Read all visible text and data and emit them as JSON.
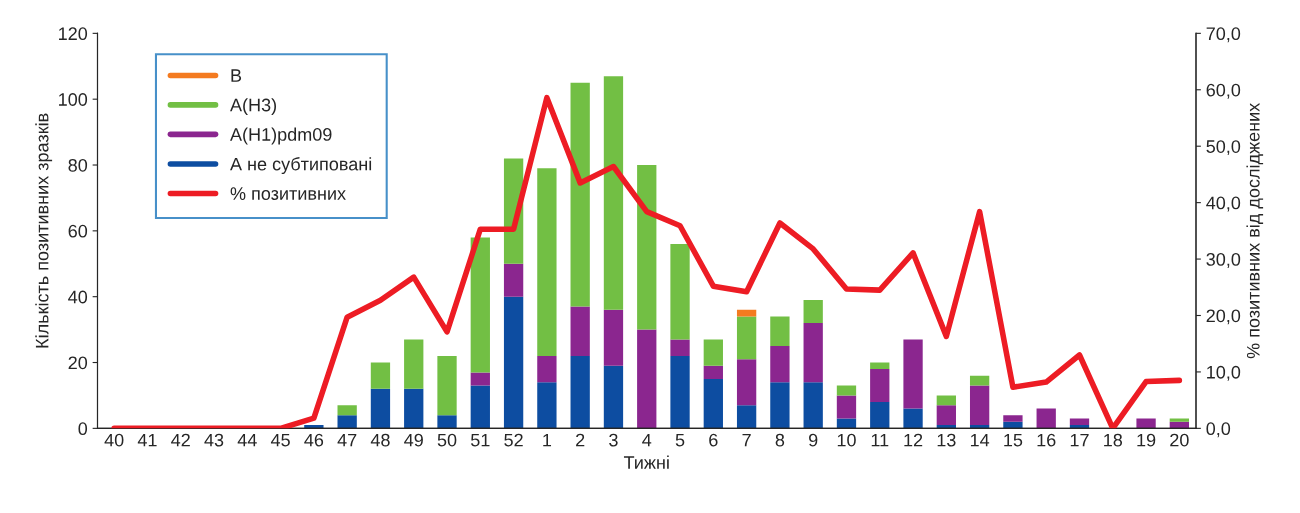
{
  "chart_data": {
    "type": "bar",
    "stacked": true,
    "xlabel": "Тижні",
    "ylabel": "Кількість позитивних зразків",
    "y2label": "% позитивних від досліджених",
    "categories": [
      "40",
      "41",
      "42",
      "43",
      "44",
      "45",
      "46",
      "47",
      "48",
      "49",
      "50",
      "51",
      "52",
      "1",
      "2",
      "3",
      "4",
      "5",
      "6",
      "7",
      "8",
      "9",
      "10",
      "11",
      "12",
      "13",
      "14",
      "15",
      "16",
      "17",
      "18",
      "19",
      "20"
    ],
    "series": [
      {
        "name": "А не субтиповані",
        "color": "#0d4da1",
        "values": [
          0,
          0,
          0,
          0,
          0,
          0,
          1,
          4,
          12,
          12,
          4,
          13,
          40,
          14,
          22,
          19,
          0,
          22,
          15,
          7,
          14,
          14,
          3,
          8,
          6,
          1,
          1,
          2,
          0,
          1,
          0,
          0,
          0
        ]
      },
      {
        "name": "А(H1)pdm09",
        "color": "#8b268f",
        "values": [
          0,
          0,
          0,
          0,
          0,
          0,
          0,
          0,
          0,
          0,
          0,
          4,
          10,
          8,
          15,
          17,
          30,
          5,
          4,
          14,
          11,
          18,
          7,
          10,
          21,
          6,
          12,
          2,
          6,
          2,
          0,
          3,
          2
        ]
      },
      {
        "name": "А(H3)",
        "color": "#72bf44",
        "values": [
          0,
          0,
          0,
          0,
          0,
          0,
          0,
          3,
          8,
          15,
          18,
          41,
          32,
          57,
          68,
          71,
          50,
          29,
          8,
          13,
          9,
          7,
          3,
          2,
          0,
          3,
          3,
          0,
          0,
          0,
          0,
          0,
          1
        ]
      },
      {
        "name": "В",
        "color": "#f47b20",
        "values": [
          0,
          0,
          0,
          0,
          0,
          0,
          0,
          0,
          0,
          0,
          0,
          0,
          0,
          0,
          0,
          0,
          0,
          0,
          0,
          2,
          0,
          0,
          0,
          0,
          0,
          0,
          0,
          0,
          0,
          0,
          0,
          0,
          0
        ]
      },
      {
        "name": "% позитивних",
        "type": "line",
        "axis": "y2",
        "color": "#ed1c24",
        "values": [
          0,
          0,
          0,
          0,
          0,
          0,
          1.8,
          19.7,
          22.7,
          26.8,
          17.1,
          35.3,
          35.3,
          58.6,
          43.5,
          46.4,
          38.4,
          35.9,
          25.2,
          24.2,
          36.4,
          31.8,
          24.7,
          24.5,
          31.1,
          16.3,
          38.4,
          7.3,
          8.2,
          13.0,
          0,
          8.3,
          8.5
        ]
      }
    ],
    "ylim": [
      0,
      120
    ],
    "yticks": [
      0,
      20,
      40,
      60,
      80,
      100,
      120
    ],
    "y2lim": [
      0,
      70
    ],
    "y2ticks": [
      {
        "value": 0,
        "label": "0,0"
      },
      {
        "value": 10,
        "label": "10,0"
      },
      {
        "value": 20,
        "label": "20,0"
      },
      {
        "value": 30,
        "label": "30,0"
      },
      {
        "value": 40,
        "label": "40,0"
      },
      {
        "value": 50,
        "label": "50,0"
      },
      {
        "value": 60,
        "label": "60,0"
      },
      {
        "value": 70,
        "label": "70,0"
      }
    ],
    "legend": "top left",
    "grid": false
  }
}
